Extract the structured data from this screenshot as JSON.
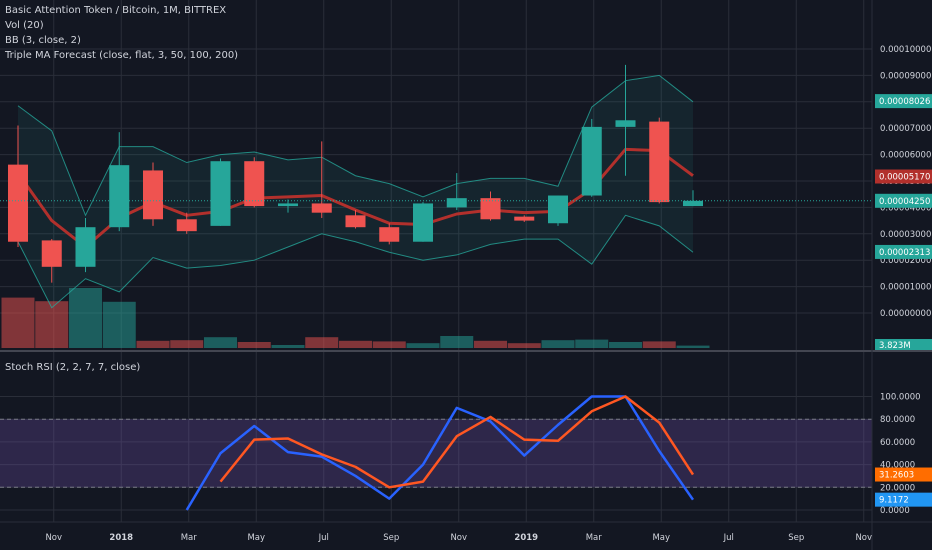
{
  "legend": {
    "symbol": "Basic Attention Token / Bitcoin, 1M, BITTREX",
    "vol": "Vol (20)",
    "bb": "BB (3, close, 2)",
    "ma": "Triple MA Forecast (close, flat, 3, 50, 100, 200)",
    "stoch": "Stoch RSI (2, 2, 7, 7, close)"
  },
  "colors": {
    "bg": "#131722",
    "up": "#26a69a",
    "down": "#ef5350",
    "ma": "#b2302c",
    "band": "#26a69a",
    "k": "#2962ff",
    "d": "#ff5722",
    "rsiBand": "#7e57c2"
  },
  "chart_data": [
    {
      "type": "candlestick",
      "title": "Basic Attention Token / Bitcoin, 1M, BITTREX",
      "ylim": [
        0,
        0.0001
      ],
      "x_tick_labels": [
        "Nov",
        "2018",
        "Mar",
        "May",
        "Jul",
        "Sep",
        "Nov",
        "2019",
        "Mar",
        "May",
        "Jul",
        "Sep",
        "Nov"
      ],
      "y_tick_labels": [
        "0.00000000",
        "0.00001000",
        "0.00002000",
        "0.00003000",
        "0.00004000",
        "0.00005000",
        "0.00006000",
        "0.00007000",
        "0.00008000",
        "0.00009000",
        "0.00010000"
      ],
      "price_tags": [
        {
          "value": "0.00008026",
          "color": "#26a69a",
          "y": 8.026e-05
        },
        {
          "value": "0.00005170",
          "color": "#b2302c",
          "y": 5.17e-05
        },
        {
          "value": "0.00004250",
          "color": "#26a69a",
          "y": 4.25e-05
        },
        {
          "value": "0.00002313",
          "color": "#26a69a",
          "y": 2.313e-05
        }
      ],
      "volume_tag": "3.823M",
      "candles": [
        {
          "x": "2017-10",
          "o": 5.62e-05,
          "h": 7.1e-05,
          "l": 2.5e-05,
          "c": 2.7e-05
        },
        {
          "x": "2017-11",
          "o": 2.75e-05,
          "h": 2.8e-05,
          "l": 1.15e-05,
          "c": 1.75e-05
        },
        {
          "x": "2017-12",
          "o": 1.75e-05,
          "h": 3.6e-05,
          "l": 1.55e-05,
          "c": 3.25e-05
        },
        {
          "x": "2018-01",
          "o": 3.25e-05,
          "h": 6.85e-05,
          "l": 3.1e-05,
          "c": 5.6e-05
        },
        {
          "x": "2018-02",
          "o": 5.4e-05,
          "h": 5.7e-05,
          "l": 3.3e-05,
          "c": 3.55e-05
        },
        {
          "x": "2018-03",
          "o": 3.55e-05,
          "h": 3.8e-05,
          "l": 3e-05,
          "c": 3.1e-05
        },
        {
          "x": "2018-04",
          "o": 3.3e-05,
          "h": 5.85e-05,
          "l": 3.3e-05,
          "c": 5.75e-05
        },
        {
          "x": "2018-05",
          "o": 5.75e-05,
          "h": 5.9e-05,
          "l": 4e-05,
          "c": 4.05e-05
        },
        {
          "x": "2018-06",
          "o": 4.05e-05,
          "h": 4.3e-05,
          "l": 3.8e-05,
          "c": 4.15e-05
        },
        {
          "x": "2018-07",
          "o": 4.15e-05,
          "h": 6.5e-05,
          "l": 3.6e-05,
          "c": 3.8e-05
        },
        {
          "x": "2018-08",
          "o": 3.7e-05,
          "h": 3.9e-05,
          "l": 3.2e-05,
          "c": 3.25e-05
        },
        {
          "x": "2018-09",
          "o": 3.25e-05,
          "h": 3.4e-05,
          "l": 2.6e-05,
          "c": 2.7e-05
        },
        {
          "x": "2018-10",
          "o": 2.7e-05,
          "h": 4.2e-05,
          "l": 2.7e-05,
          "c": 4.15e-05
        },
        {
          "x": "2018-11",
          "o": 4e-05,
          "h": 5.3e-05,
          "l": 3.9e-05,
          "c": 4.35e-05
        },
        {
          "x": "2018-12",
          "o": 4.35e-05,
          "h": 4.6e-05,
          "l": 3.5e-05,
          "c": 3.55e-05
        },
        {
          "x": "2019-01",
          "o": 3.65e-05,
          "h": 3.7e-05,
          "l": 3.45e-05,
          "c": 3.5e-05
        },
        {
          "x": "2019-02",
          "o": 3.4e-05,
          "h": 4.45e-05,
          "l": 3.3e-05,
          "c": 4.45e-05
        },
        {
          "x": "2019-03",
          "o": 4.45e-05,
          "h": 7.35e-05,
          "l": 4.4e-05,
          "c": 7.05e-05
        },
        {
          "x": "2019-04",
          "o": 7.05e-05,
          "h": 9.4e-05,
          "l": 5.2e-05,
          "c": 7.3e-05
        },
        {
          "x": "2019-05",
          "o": 7.25e-05,
          "h": 7.4e-05,
          "l": 4.15e-05,
          "c": 4.2e-05
        },
        {
          "x": "2019-06",
          "o": 4.05e-05,
          "h": 4.65e-05,
          "l": 4.05e-05,
          "c": 4.25e-05
        }
      ],
      "moving_average": [
        5.3e-05,
        3.5e-05,
        2.5e-05,
        3.6e-05,
        4.2e-05,
        3.7e-05,
        3.85e-05,
        4.35e-05,
        4.4e-05,
        4.45e-05,
        3.9e-05,
        3.4e-05,
        3.35e-05,
        3.75e-05,
        3.9e-05,
        3.8e-05,
        3.85e-05,
        4.7e-05,
        6.2e-05,
        6.15e-05,
        5.2e-05
      ],
      "bb_upper": [
        7.85e-05,
        6.9e-05,
        3.7e-05,
        6.3e-05,
        6.3e-05,
        5.7e-05,
        6e-05,
        6.1e-05,
        5.8e-05,
        5.9e-05,
        5.2e-05,
        4.9e-05,
        4.4e-05,
        4.9e-05,
        5.1e-05,
        5.1e-05,
        4.8e-05,
        7.8e-05,
        8.8e-05,
        9e-05,
        8e-05
      ],
      "bb_lower": [
        2.7e-05,
        2e-06,
        1.3e-05,
        8e-06,
        2.1e-05,
        1.7e-05,
        1.8e-05,
        2e-05,
        2.5e-05,
        3e-05,
        2.7e-05,
        2.3e-05,
        2e-05,
        2.2e-05,
        2.6e-05,
        2.8e-05,
        2.8e-05,
        1.85e-05,
        3.7e-05,
        3.3e-05,
        2.3e-05
      ],
      "volume": [
        0.84,
        0.78,
        1.0,
        0.77,
        0.12,
        0.13,
        0.18,
        0.1,
        0.05,
        0.18,
        0.12,
        0.11,
        0.08,
        0.2,
        0.12,
        0.08,
        0.13,
        0.14,
        0.1,
        0.11,
        0.04
      ]
    },
    {
      "type": "line",
      "title": "Stoch RSI (2, 2, 7, 7, close)",
      "ylim": [
        0,
        100
      ],
      "y_tick_labels": [
        "0.0000",
        "20.0000",
        "40.0000",
        "60.0000",
        "80.0000",
        "100.0000"
      ],
      "bands": [
        20,
        80
      ],
      "tags": [
        {
          "value": "31.2603",
          "color": "#ff6d00",
          "y": 31.26
        },
        {
          "value": "9.1172",
          "color": "#2196f3",
          "y": 9.1172
        }
      ],
      "series": [
        {
          "key": "k",
          "x": [
            "2018-03",
            "2018-04",
            "2018-05",
            "2018-06",
            "2018-07",
            "2018-08",
            "2018-09",
            "2018-10",
            "2018-11",
            "2018-12",
            "2019-01",
            "2019-02",
            "2019-03",
            "2019-04",
            "2019-05",
            "2019-06"
          ],
          "values": [
            0,
            50,
            74,
            51,
            47,
            30,
            10,
            40,
            90,
            78,
            48,
            75,
            100,
            100,
            52,
            9.1172
          ]
        },
        {
          "key": "d",
          "x": [
            "2018-04",
            "2018-05",
            "2018-06",
            "2018-07",
            "2018-08",
            "2018-09",
            "2018-10",
            "2018-11",
            "2018-12",
            "2019-01",
            "2019-02",
            "2019-03",
            "2019-04",
            "2019-05",
            "2019-06"
          ],
          "values": [
            25,
            62,
            63,
            49,
            38,
            20,
            25,
            65,
            82,
            62,
            61,
            87,
            100,
            77,
            31.2603
          ]
        }
      ]
    }
  ]
}
